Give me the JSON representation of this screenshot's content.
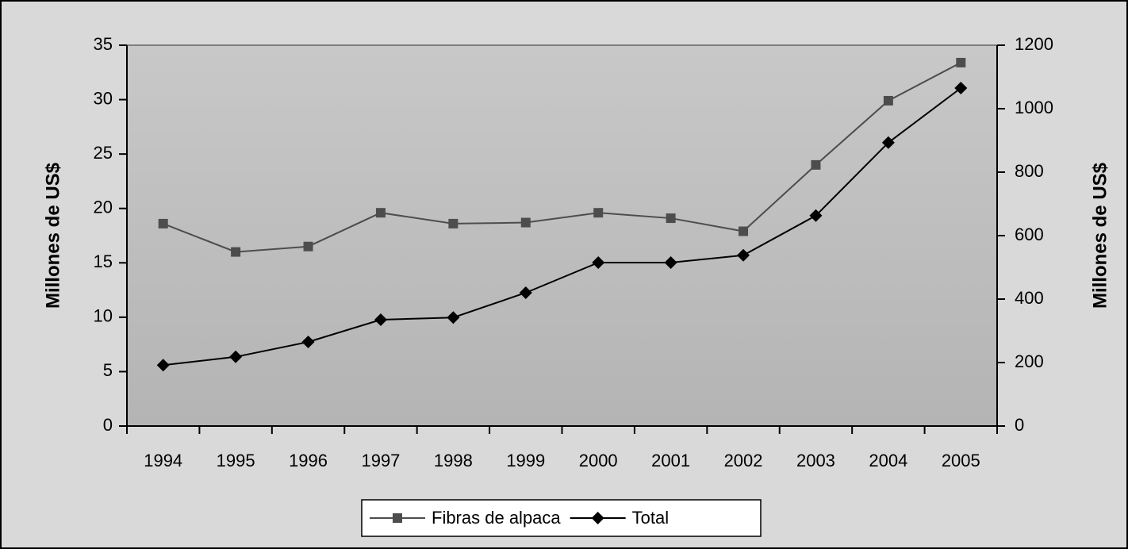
{
  "chart_data": {
    "type": "line",
    "ylabel": "Millones de US$",
    "y2label": "Millones de US$",
    "categories": [
      "1994",
      "1995",
      "1996",
      "1997",
      "1998",
      "1999",
      "2000",
      "2001",
      "2002",
      "2003",
      "2004",
      "2005"
    ],
    "series": [
      {
        "name": "Fibras de alpaca",
        "color": "#4d4d4d",
        "marker": "square",
        "values": [
          18.6,
          16.0,
          16.5,
          19.6,
          18.6,
          18.7,
          19.6,
          19.1,
          17.9,
          24.0,
          29.9,
          33.4
        ]
      },
      {
        "name": "Total",
        "color": "#000000",
        "marker": "diamond",
        "axis": "y2",
        "values": [
          192,
          218,
          265,
          335,
          342,
          420,
          515,
          515,
          538,
          663,
          893,
          1065
        ]
      }
    ],
    "ylim": [
      0,
      35
    ],
    "yticks": [
      0,
      5,
      10,
      15,
      20,
      25,
      30,
      35
    ],
    "y2lim": [
      0,
      1200
    ],
    "y2ticks": [
      0,
      200,
      400,
      600,
      800,
      1000,
      1200
    ],
    "legend": "bottom",
    "grid": false
  }
}
